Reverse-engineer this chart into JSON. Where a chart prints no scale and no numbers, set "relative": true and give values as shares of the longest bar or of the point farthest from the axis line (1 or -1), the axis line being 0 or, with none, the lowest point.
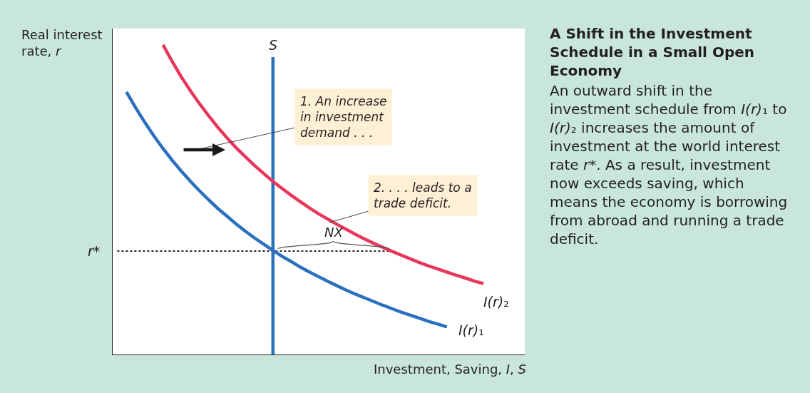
{
  "chart_data": {
    "type": "line",
    "title": "A Shift in the Investment Schedule in a Small Open Economy",
    "subtitle": "An outward shift in the investment schedule from I(r)₁ to I(r)₂ increases the amount of investment at the world interest rate r*. As a result, investment now exceeds saving, which means the economy is borrowing from abroad and running a trade deficit.",
    "xlabel": "Investment, Saving, I, S",
    "ylabel": "Real interest rate, r",
    "relative": true,
    "legend": false,
    "grid": false,
    "tick_labels": false,
    "categories": [
      null,
      null,
      null,
      null,
      null,
      null,
      null,
      null,
      null,
      null,
      null,
      null,
      null,
      null,
      null,
      null,
      null,
      null,
      null,
      null,
      null,
      null,
      null,
      null,
      null,
      null,
      null,
      null,
      null,
      null,
      null,
      null,
      null,
      null,
      null,
      null,
      null,
      null,
      null,
      null,
      null,
      null,
      null,
      null,
      null
    ],
    "series": [
      {
        "name": "I(r)₁",
        "color": "#2b70be",
        "values": [
          null,
          0.848,
          0.797,
          0.75,
          0.706,
          0.665,
          0.627,
          0.592,
          0.559,
          0.528,
          0.499,
          0.471,
          0.446,
          0.421,
          0.398,
          0.376,
          0.356,
          0.336,
          0.317,
          0.3,
          0.282,
          0.266,
          0.251,
          0.236,
          0.222,
          0.208,
          0.195,
          0.183,
          0.171,
          0.159,
          0.148,
          0.137,
          0.127,
          0.117,
          0.107,
          0.098,
          0.089,
          null,
          null,
          null,
          null,
          null,
          null,
          null,
          null
        ]
      },
      {
        "name": "I(r)₂",
        "color": "#e8375c",
        "values": [
          null,
          null,
          null,
          null,
          null,
          1.0,
          0.946,
          0.896,
          0.851,
          0.809,
          0.77,
          0.733,
          0.699,
          0.667,
          0.638,
          0.61,
          0.584,
          0.559,
          0.536,
          0.514,
          0.493,
          0.473,
          0.454,
          0.437,
          0.42,
          0.404,
          0.388,
          0.373,
          0.359,
          0.346,
          0.333,
          0.321,
          0.309,
          0.297,
          0.286,
          0.276,
          0.266,
          0.256,
          0.247,
          0.237,
          0.229,
          null,
          null,
          null,
          null
        ]
      }
    ],
    "ref_lines": [
      {
        "axis": "y",
        "value": 0.334,
        "label": "r*",
        "color": "#231f20",
        "line_style": "dotted"
      }
    ],
    "annotations": [
      "S",
      "1. An increase in investment demand . . .",
      "2. . . . leads to a trade deficit.",
      "NX"
    ]
  }
}
